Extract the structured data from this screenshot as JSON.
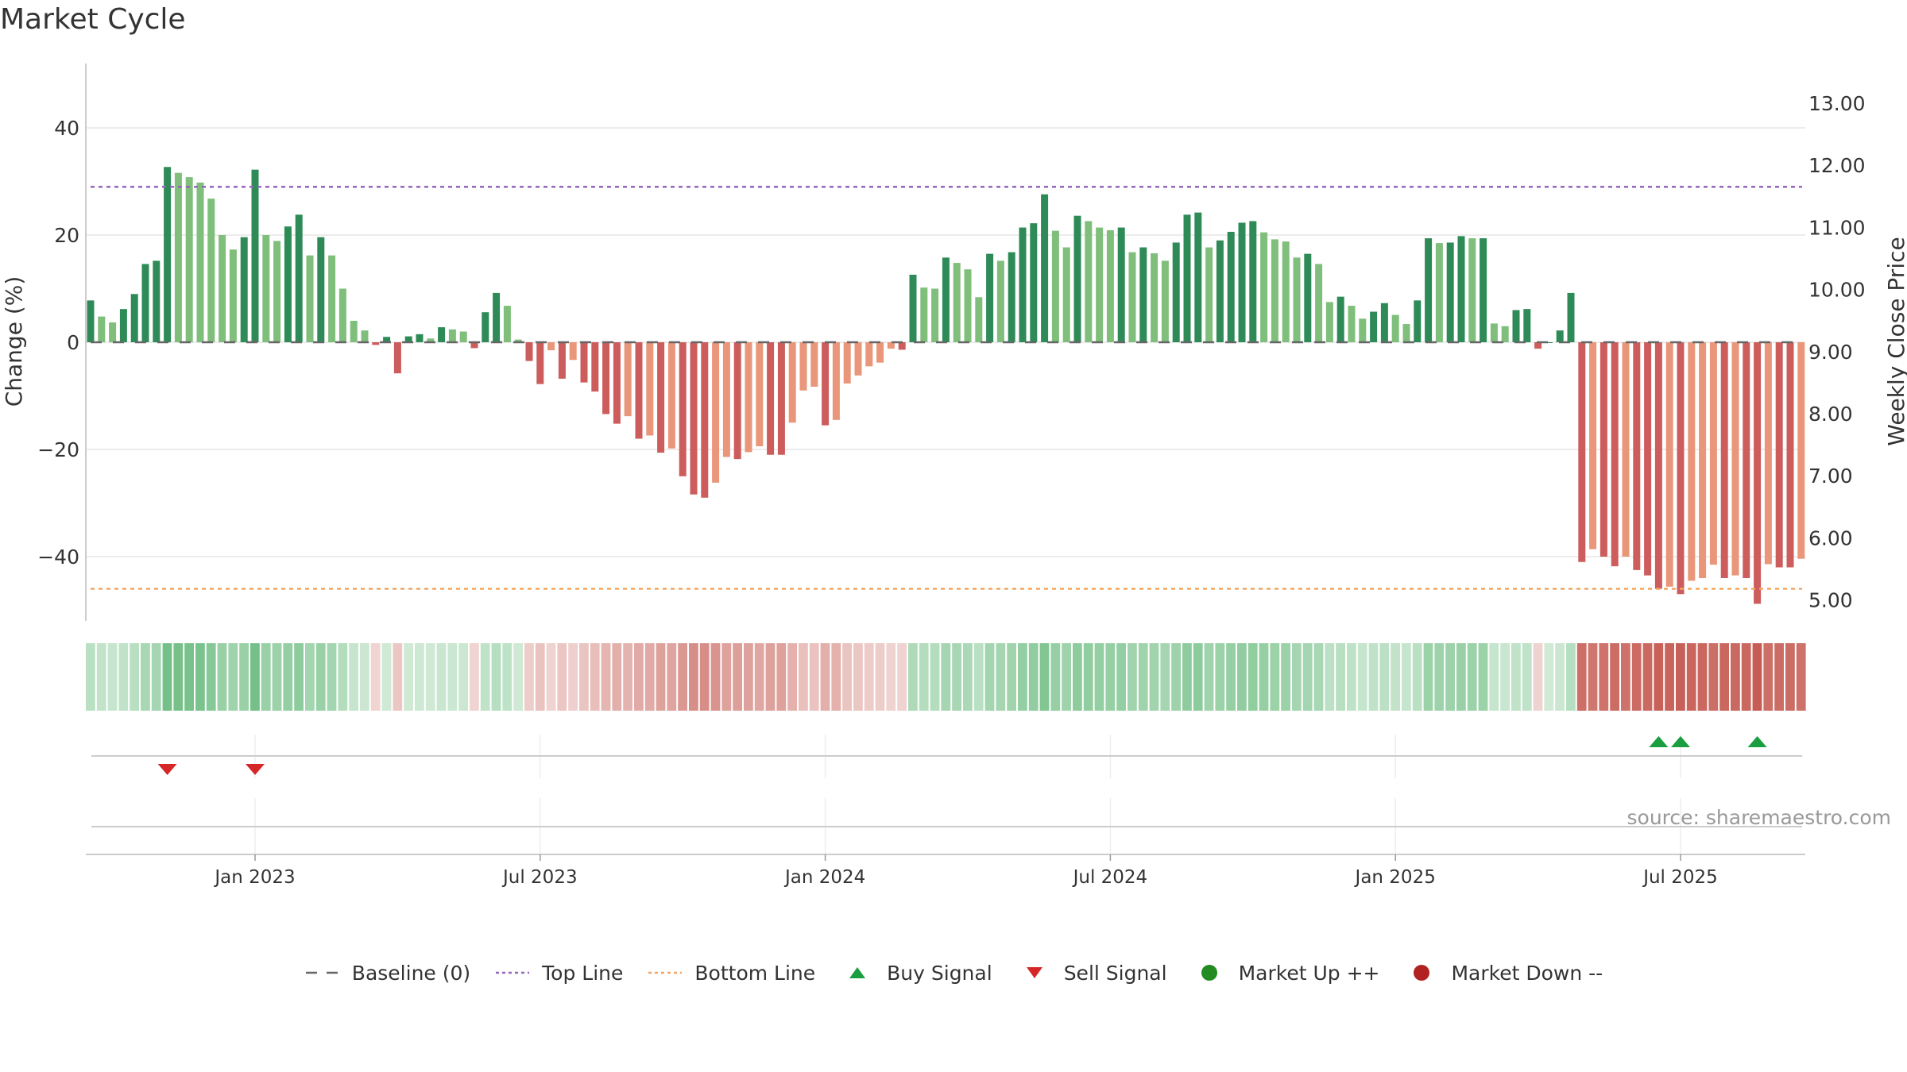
{
  "title": "Market Cycle",
  "source": "source: sharemaestro.com",
  "colors": {
    "up_dark": "#2e8b57",
    "up_light": "#7fbf7b",
    "down_dark": "#cd5c5c",
    "down_light": "#e9967a",
    "top_line": "#9467bd",
    "bottom_line": "#f4a460",
    "buy": "#1a9e3f",
    "sell": "#d62728",
    "market_up": "#228b22",
    "market_down": "#b22222"
  },
  "legend": [
    {
      "label": "Baseline (0)",
      "kind": "dash",
      "color": "#666666"
    },
    {
      "label": "Top Line",
      "kind": "dot",
      "color": "#9467bd"
    },
    {
      "label": "Bottom Line",
      "kind": "dot",
      "color": "#f4a460"
    },
    {
      "label": "Buy Signal",
      "kind": "tri-up",
      "color": "#1a9e3f"
    },
    {
      "label": "Sell Signal",
      "kind": "tri-down",
      "color": "#d62728"
    },
    {
      "label": "Market Up ++",
      "kind": "circle",
      "color": "#228b22"
    },
    {
      "label": "Market Down --",
      "kind": "circle",
      "color": "#b22222"
    }
  ],
  "chart_data": {
    "type": "bar",
    "x_tick_labels": [
      "Jan 2023",
      "Jul 2023",
      "Jan 2024",
      "Jul 2024",
      "Jan 2025",
      "Jul 2025"
    ],
    "x_tick_weeks": [
      15,
      41,
      67,
      93,
      119,
      145
    ],
    "y_left": {
      "label": "Change (%)",
      "ticks": [
        40,
        20,
        0,
        -20,
        -40
      ],
      "tick_labels": [
        "40",
        "20",
        "0",
        "−20",
        "−40"
      ],
      "lim": [
        -52,
        52
      ]
    },
    "y_right": {
      "label": "Weekly Close Price",
      "ticks": [
        "13.00",
        "12.00",
        "11.00",
        "10.00",
        "9.00",
        "8.00",
        "7.00",
        "6.00",
        "5.00"
      ]
    },
    "top_line": 29,
    "bottom_line": -46,
    "values": [
      7.8,
      4.8,
      3.7,
      6.2,
      9,
      14.6,
      15.2,
      32.7,
      31.6,
      30.8,
      29.8,
      26.8,
      20,
      17.3,
      19.6,
      32.2,
      20,
      18.9,
      21.6,
      23.8,
      16.2,
      19.6,
      16.2,
      10,
      4,
      2.2,
      -0.5,
      1,
      -5.8,
      1.1,
      1.5,
      0.7,
      2.8,
      2.4,
      2,
      -1.1,
      5.6,
      9.2,
      6.8,
      0.5,
      -3.5,
      -7.8,
      -1.5,
      -6.8,
      -3.3,
      -7.5,
      -9.2,
      -13.4,
      -15.2,
      -13.8,
      -18,
      -17.4,
      -20.6,
      -19.8,
      -25,
      -28.4,
      -29,
      -26.2,
      -21.4,
      -21.8,
      -20.5,
      -19.4,
      -21,
      -21,
      -15,
      -9,
      -8.3,
      -15.5,
      -14.5,
      -7.7,
      -6.2,
      -4.5,
      -3.8,
      -1.2,
      -1.4,
      12.6,
      10.2,
      10,
      15.8,
      14.8,
      13.6,
      8.4,
      16.5,
      15.2,
      16.8,
      21.4,
      22.2,
      27.6,
      20.8,
      17.7,
      23.6,
      22.6,
      21.4,
      20.9,
      21.4,
      16.8,
      17.7,
      16.6,
      15.2,
      18.6,
      23.8,
      24.2,
      17.7,
      19,
      20.6,
      22.3,
      22.6,
      20.5,
      19.2,
      18.8,
      15.8,
      16.5,
      14.6,
      7.5,
      8.5,
      6.8,
      4.4,
      5.7,
      7.3,
      5.1,
      3.4,
      7.8,
      19.4,
      18.5,
      18.6,
      19.8,
      19.4,
      19.4,
      3.5,
      3,
      6,
      6.2,
      -1.2,
      0,
      2.2,
      9.2,
      -41,
      -38.6,
      -40,
      -41.8,
      -40,
      -42.5,
      -43.5,
      -46,
      -45.6,
      -47,
      -44.5,
      -44,
      -41.5,
      -44,
      -43.5,
      -44,
      -48.8,
      -41.4,
      -42,
      -42,
      -40.4
    ],
    "signals": {
      "buy": [
        [
          "Jun 2025",
          143
        ],
        [
          "Jul 2025",
          145
        ],
        [
          "Aug 2025",
          152
        ]
      ],
      "sell": [
        [
          "Nov 2022",
          7
        ],
        [
          "Jan 2023",
          15
        ]
      ]
    }
  }
}
